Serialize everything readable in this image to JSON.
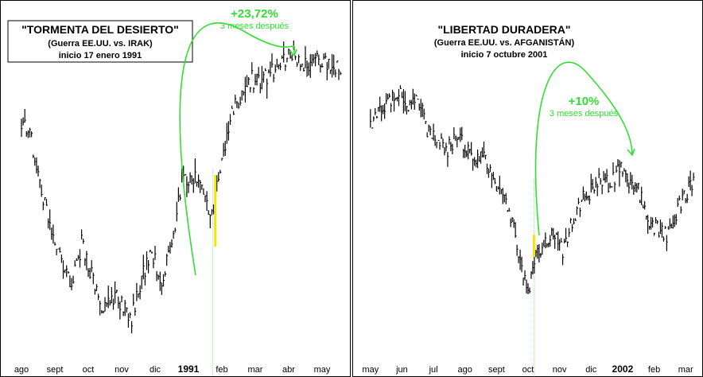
{
  "chart_data": [
    {
      "type": "line",
      "style": "ohlc-bars",
      "title": "\"TORMENTA DEL DESIERTO\"",
      "subtitle": "(Guerra EE.UU. vs. IRAK)",
      "start_label": "inicio 17 enero 1991",
      "annotation": {
        "value": "+23,72%",
        "note": "3 meses después"
      },
      "months": [
        "ago",
        "sept",
        "oct",
        "nov",
        "dic",
        "1991",
        "feb",
        "mar",
        "abr",
        "may"
      ],
      "highlight_month": "1991",
      "event_x": 5.72,
      "x": [
        0,
        0.3,
        0.6,
        0.9,
        1.2,
        1.5,
        1.8,
        2.1,
        2.4,
        2.7,
        3.0,
        3.3,
        3.6,
        3.9,
        4.2,
        4.5,
        4.8,
        5.1,
        5.4,
        5.7,
        6.0,
        6.3,
        6.6,
        6.9,
        7.2,
        7.5,
        7.8,
        8.1,
        8.4,
        8.7,
        9.0,
        9.3,
        9.6
      ],
      "y": [
        76,
        70,
        52,
        40,
        30,
        20,
        35,
        25,
        12,
        18,
        15,
        10,
        24,
        32,
        22,
        36,
        55,
        58,
        53,
        44,
        62,
        78,
        86,
        90,
        89,
        93,
        95,
        99,
        93,
        97,
        96,
        94,
        95
      ],
      "series_color": "#000000",
      "ylim": [
        0,
        100
      ],
      "grid": false
    },
    {
      "type": "line",
      "style": "ohlc-bars",
      "title": "\"LIBERTAD DURADERA\"",
      "subtitle": "(Guerra EE.UU. vs. AFGANISTÁN)",
      "start_label": "inicio 7 octubre 2001",
      "annotation": {
        "value": "+10%",
        "note": "3 meses después"
      },
      "months": [
        "may",
        "jun",
        "jul",
        "ago",
        "sept",
        "oct",
        "nov",
        "dic",
        "2002",
        "feb",
        "mar"
      ],
      "highlight_month": "2002",
      "event_x": 5.2,
      "x": [
        0,
        0.3,
        0.6,
        0.9,
        1.2,
        1.5,
        1.8,
        2.1,
        2.4,
        2.7,
        3.0,
        3.3,
        3.6,
        3.9,
        4.2,
        4.5,
        4.8,
        5.0,
        5.2,
        5.5,
        5.8,
        6.1,
        6.4,
        6.7,
        7.0,
        7.3,
        7.6,
        7.9,
        8.2,
        8.5,
        8.8,
        9.1,
        9.4,
        9.7,
        10.0,
        10.3
      ],
      "y": [
        78,
        84,
        88,
        92,
        86,
        89,
        78,
        74,
        70,
        75,
        72,
        65,
        68,
        60,
        55,
        45,
        28,
        18,
        32,
        36,
        40,
        34,
        45,
        52,
        56,
        60,
        58,
        64,
        58,
        56,
        46,
        42,
        40,
        48,
        54,
        60
      ],
      "series_color": "#000000",
      "ylim": [
        0,
        100
      ],
      "grid": false
    }
  ],
  "colors": {
    "accent_green": "#33dd33",
    "highlight_yellow": "#f2e600",
    "bars": "#000000",
    "panel_border": "#000000"
  }
}
